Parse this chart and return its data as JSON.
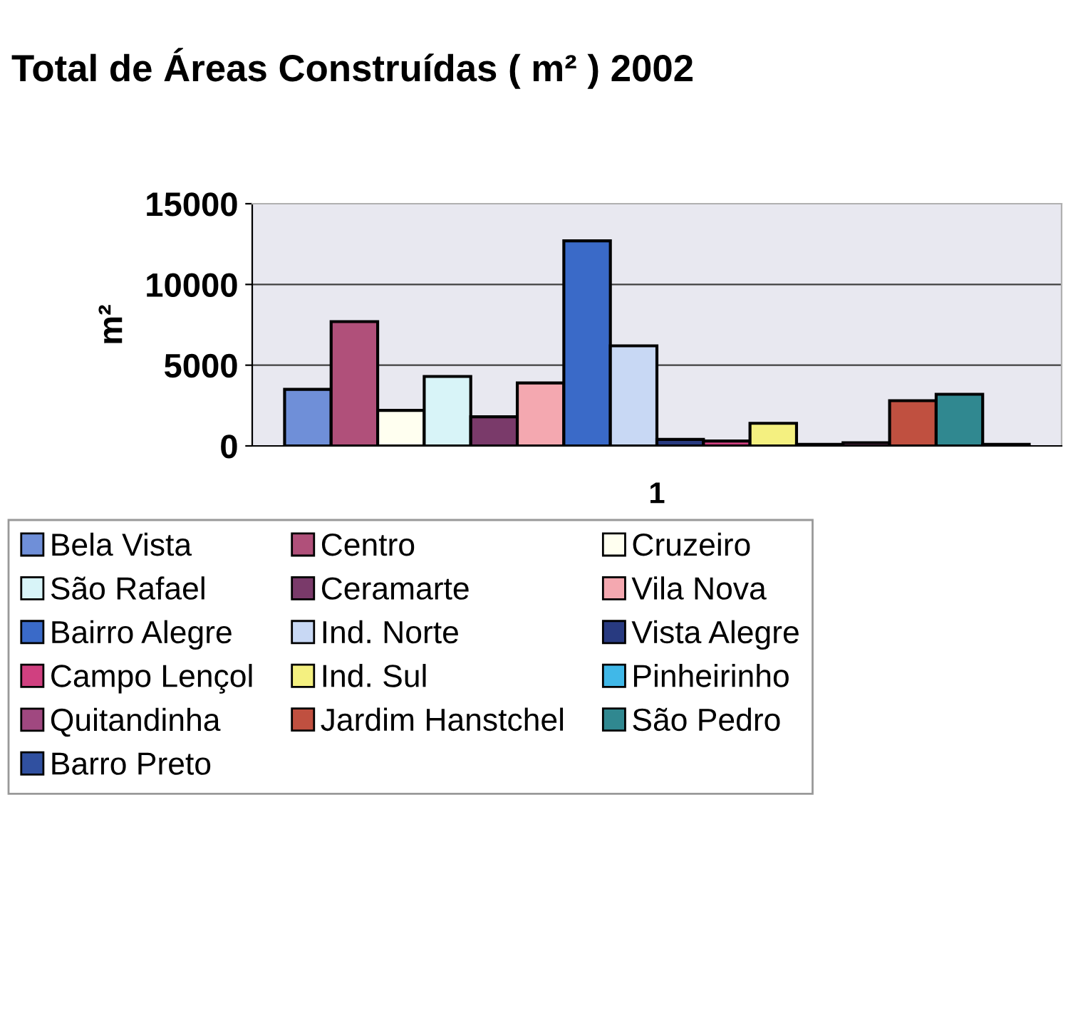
{
  "chart_data": {
    "type": "bar",
    "title": "Total de Áreas Construídas ( m² ) 2002",
    "ylabel": "m²",
    "categories": [
      "1"
    ],
    "series": [
      {
        "name": "Bela Vista",
        "color": "#6f8fd8",
        "values": [
          3500
        ]
      },
      {
        "name": "Centro",
        "color": "#b0507a",
        "values": [
          7700
        ]
      },
      {
        "name": "Cruzeiro",
        "color": "#fffff0",
        "values": [
          2200
        ]
      },
      {
        "name": "São Rafael",
        "color": "#d8f4f8",
        "values": [
          4300
        ]
      },
      {
        "name": "Ceramarte",
        "color": "#7a3a6a",
        "values": [
          1800
        ]
      },
      {
        "name": "Vila Nova",
        "color": "#f4a8b0",
        "values": [
          3900
        ]
      },
      {
        "name": "Bairro Alegre",
        "color": "#3a6ac8",
        "values": [
          12700
        ]
      },
      {
        "name": "Ind. Norte",
        "color": "#c8d8f4",
        "values": [
          6200
        ]
      },
      {
        "name": "Vista Alegre",
        "color": "#283a80",
        "values": [
          400
        ]
      },
      {
        "name": "Campo Lençol",
        "color": "#d04080",
        "values": [
          300
        ]
      },
      {
        "name": "Ind. Sul",
        "color": "#f4f080",
        "values": [
          1400
        ]
      },
      {
        "name": "Pinheirinho",
        "color": "#40b8e8",
        "values": [
          100
        ]
      },
      {
        "name": "Quitandinha",
        "color": "#a04880",
        "values": [
          200
        ]
      },
      {
        "name": "Jardim Hanstchel",
        "color": "#c05040",
        "values": [
          2800
        ]
      },
      {
        "name": "São Pedro",
        "color": "#308890",
        "values": [
          3200
        ]
      },
      {
        "name": "Barro Preto",
        "color": "#3050a0",
        "values": [
          100
        ]
      }
    ],
    "ylim": [
      0,
      15000
    ],
    "yticks": [
      0,
      5000,
      10000,
      15000
    ],
    "grid": "y",
    "legend": "bottom"
  }
}
